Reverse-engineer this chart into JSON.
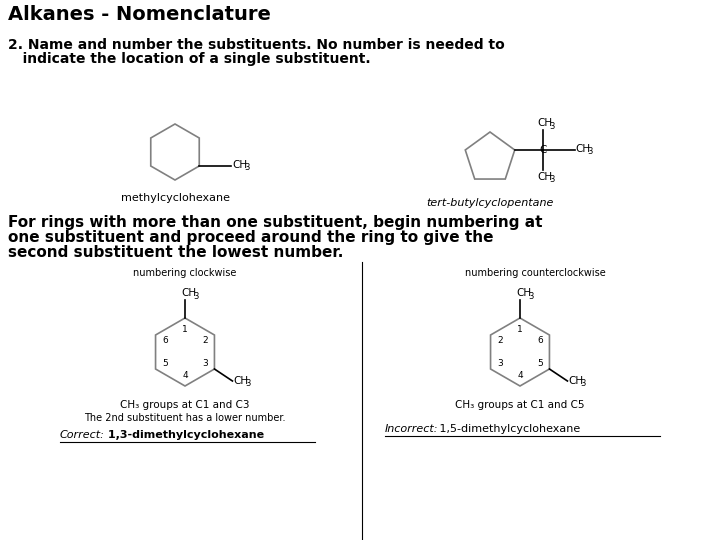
{
  "title": "Alkanes - Nomenclature",
  "bg_color": "#ffffff",
  "text_color": "#000000",
  "section2_line1": "2. Name and number the substituents. No number is needed to",
  "section2_line2": "   indicate the location of a single substituent.",
  "section3_line1": "For rings with more than one substituent, begin numbering at",
  "section3_line2": "one substituent and proceed around the ring to give the",
  "section3_line3": "second substituent the lowest number.",
  "label_methylcyclohexane": "methylcyclohexane",
  "label_tertbutyl": "tert-butylcyclopentane",
  "label_clockwise": "numbering clockwise",
  "label_counterclockwise": "numbering counterclockwise",
  "label_ch3_c1_c3": "CH₃ groups at C1 and C3",
  "label_2nd_sub": "The 2nd substituent has a lower number.",
  "label_ch3_c1_c5": "CH₃ groups at C1 and C5",
  "title_fontsize": 14,
  "body_fontsize": 10,
  "bold_fontsize": 11,
  "small_fontsize": 8,
  "chem_fontsize": 7.5,
  "chem_sub_fontsize": 6
}
